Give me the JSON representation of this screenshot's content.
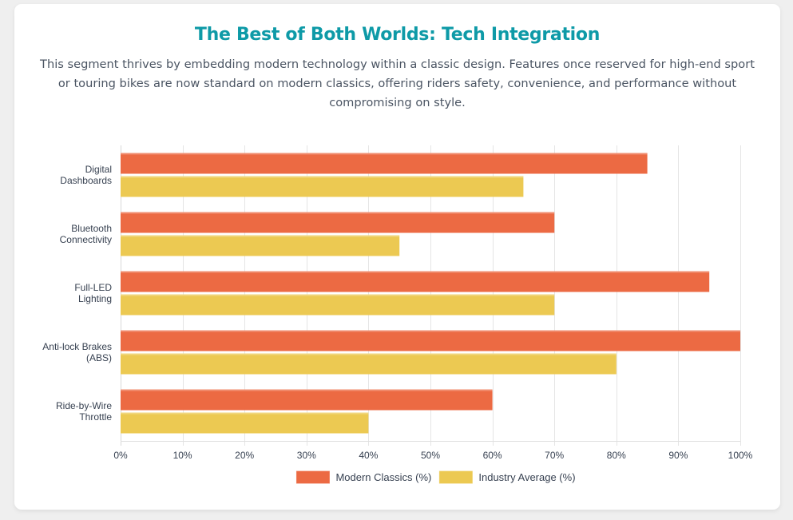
{
  "header": {
    "title": "The Best of Both Worlds: Tech Integration",
    "description": "This segment thrives by embedding modern technology within a classic design. Features once reserved for high-end sport or touring bikes are now standard on modern classics, offering riders safety, convenience, and performance without compromising on style."
  },
  "chart_data": {
    "type": "bar",
    "orientation": "horizontal",
    "title": "",
    "xlabel": "",
    "ylabel": "",
    "categories": [
      [
        "Digital",
        "Dashboards"
      ],
      [
        "Bluetooth",
        "Connectivity"
      ],
      [
        "Full-LED",
        "Lighting"
      ],
      [
        "Anti-lock Brakes",
        "(ABS)"
      ],
      [
        "Ride-by-Wire",
        "Throttle"
      ]
    ],
    "series": [
      {
        "name": "Modern Classics (%)",
        "color": "#ec6a43",
        "values": [
          85,
          70,
          95,
          100,
          60
        ]
      },
      {
        "name": "Industry Average (%)",
        "color": "#ecc952",
        "values": [
          65,
          45,
          70,
          80,
          40
        ]
      }
    ],
    "xlim": [
      0,
      100
    ],
    "x_ticks": [
      0,
      10,
      20,
      30,
      40,
      50,
      60,
      70,
      80,
      90,
      100
    ],
    "tick_suffix": "%",
    "grid": true,
    "legend_position": "bottom"
  }
}
